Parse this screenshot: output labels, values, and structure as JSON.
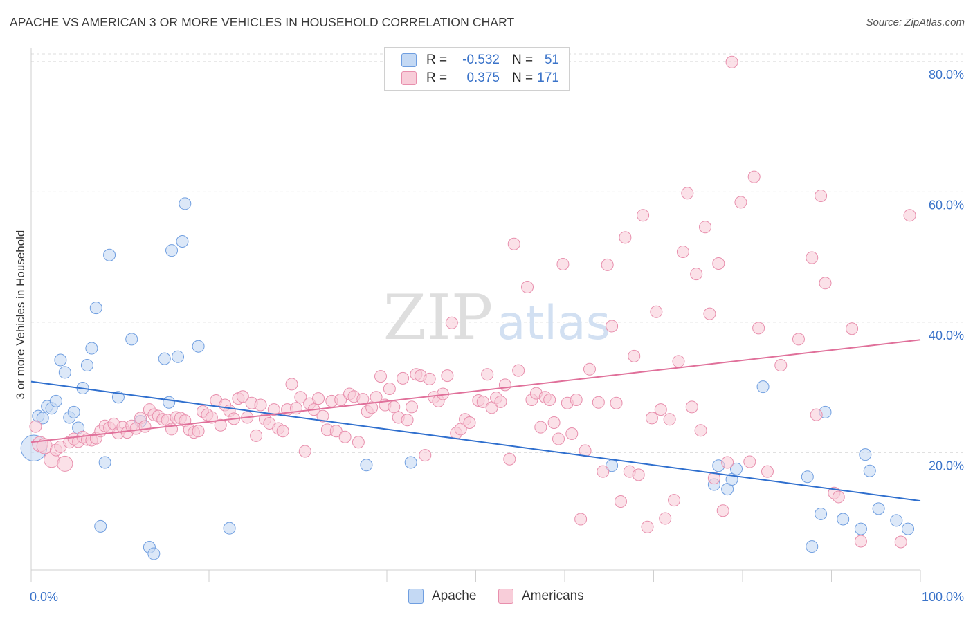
{
  "title": "APACHE VS AMERICAN 3 OR MORE VEHICLES IN HOUSEHOLD CORRELATION CHART",
  "source": "Source: ZipAtlas.com",
  "watermark": {
    "zip": "ZIP",
    "atlas": "atlas"
  },
  "legend": {
    "rows": [
      {
        "r_label": "R =",
        "r_value": "-0.532",
        "n_label": "N =",
        "n_value": "51",
        "color": "#6f9ee0",
        "fill": "#c4d9f4"
      },
      {
        "r_label": "R =",
        "r_value": "0.375",
        "n_label": "N =",
        "n_value": "171",
        "color": "#e88fad",
        "fill": "#f8cdd9"
      }
    ]
  },
  "bottom_legend": {
    "apache": "Apache",
    "americans": "Americans"
  },
  "chart_data": {
    "type": "scatter",
    "ylabel": "3 or more Vehicles in Household",
    "xlim": [
      0,
      100
    ],
    "ylim": [
      2,
      82
    ],
    "x_tick_labels": [
      "0.0%",
      "100.0%"
    ],
    "y_ticks": [
      {
        "value": 20,
        "label": "20.0%"
      },
      {
        "value": 40,
        "label": "40.0%"
      },
      {
        "value": 60,
        "label": "60.0%"
      },
      {
        "value": 80,
        "label": "80.0%"
      }
    ],
    "grid": true,
    "series": [
      {
        "name": "Apache",
        "color": "#6f9ee0",
        "fill": "#c4d9f4",
        "trend": {
          "x": [
            0,
            100
          ],
          "y": [
            30.9,
            12.6
          ]
        },
        "points": [
          [
            0.3,
            20.7,
            2.2
          ],
          [
            0.8,
            25.6,
            1
          ],
          [
            1.3,
            25.3,
            1
          ],
          [
            1.8,
            27.1,
            1
          ],
          [
            2.3,
            26.8,
            1
          ],
          [
            2.8,
            27.9,
            1
          ],
          [
            3.3,
            34.2,
            1
          ],
          [
            3.8,
            32.3,
            1
          ],
          [
            4.3,
            25.4,
            1
          ],
          [
            4.8,
            26.2,
            1
          ],
          [
            5.3,
            23.8,
            1
          ],
          [
            5.8,
            29.9,
            1
          ],
          [
            6.3,
            33.4,
            1
          ],
          [
            6.8,
            36.0,
            1
          ],
          [
            7.3,
            42.2,
            1
          ],
          [
            7.8,
            8.7,
            1
          ],
          [
            8.3,
            18.5,
            1
          ],
          [
            8.8,
            50.3,
            1
          ],
          [
            9.8,
            28.5,
            1
          ],
          [
            11.3,
            37.4,
            1
          ],
          [
            12.3,
            24.8,
            1
          ],
          [
            13.3,
            5.5,
            1
          ],
          [
            13.8,
            4.5,
            1
          ],
          [
            15.0,
            34.4,
            1
          ],
          [
            15.5,
            27.7,
            1
          ],
          [
            15.8,
            51.0,
            1
          ],
          [
            16.5,
            34.7,
            1
          ],
          [
            17.0,
            52.4,
            1
          ],
          [
            17.3,
            58.2,
            1
          ],
          [
            18.8,
            36.3,
            1
          ],
          [
            22.3,
            8.4,
            1
          ],
          [
            37.7,
            18.1,
            1
          ],
          [
            42.7,
            18.5,
            1
          ],
          [
            65.3,
            18.0,
            1
          ],
          [
            76.8,
            15.1,
            1
          ],
          [
            77.3,
            18.0,
            1
          ],
          [
            78.3,
            14.4,
            1
          ],
          [
            78.8,
            15.9,
            1
          ],
          [
            79.3,
            17.5,
            1
          ],
          [
            82.3,
            30.1,
            1
          ],
          [
            87.3,
            16.3,
            1
          ],
          [
            87.8,
            5.6,
            1
          ],
          [
            88.8,
            10.6,
            1
          ],
          [
            89.3,
            26.2,
            1
          ],
          [
            91.3,
            9.8,
            1
          ],
          [
            93.3,
            8.3,
            1
          ],
          [
            93.8,
            19.7,
            1
          ],
          [
            94.3,
            17.2,
            1
          ],
          [
            95.3,
            11.4,
            1
          ],
          [
            97.3,
            9.6,
            1
          ],
          [
            98.6,
            8.3,
            1
          ]
        ]
      },
      {
        "name": "Americans",
        "color": "#e88fad",
        "fill": "#f8cdd9",
        "trend": {
          "x": [
            0,
            100
          ],
          "y": [
            21.6,
            37.3
          ]
        },
        "points": [
          [
            0.5,
            24.0,
            1
          ],
          [
            1.0,
            21.3,
            1.3
          ],
          [
            1.5,
            21.0,
            1.3
          ],
          [
            2.3,
            18.9,
            1.3
          ],
          [
            2.8,
            20.4,
            1
          ],
          [
            3.3,
            20.9,
            1
          ],
          [
            3.8,
            18.3,
            1.3
          ],
          [
            4.3,
            21.6,
            1
          ],
          [
            4.8,
            22.1,
            1
          ],
          [
            5.3,
            21.7,
            1
          ],
          [
            5.8,
            22.4,
            1
          ],
          [
            6.3,
            22.0,
            1
          ],
          [
            6.8,
            21.9,
            1
          ],
          [
            7.3,
            22.2,
            1
          ],
          [
            7.8,
            23.3,
            1
          ],
          [
            8.3,
            24.1,
            1
          ],
          [
            8.8,
            23.8,
            1
          ],
          [
            9.3,
            24.4,
            1
          ],
          [
            9.8,
            23.0,
            1
          ],
          [
            10.3,
            23.9,
            1
          ],
          [
            10.8,
            23.1,
            1
          ],
          [
            11.3,
            24.1,
            1
          ],
          [
            11.8,
            23.7,
            1
          ],
          [
            12.3,
            25.3,
            1
          ],
          [
            12.8,
            24.0,
            1
          ],
          [
            13.3,
            26.6,
            1
          ],
          [
            13.8,
            25.8,
            1
          ],
          [
            14.3,
            25.6,
            1
          ],
          [
            14.8,
            25.1,
            1
          ],
          [
            15.3,
            25.0,
            1
          ],
          [
            15.8,
            23.6,
            1
          ],
          [
            16.3,
            25.4,
            1
          ],
          [
            16.8,
            25.3,
            1
          ],
          [
            17.3,
            24.9,
            1
          ],
          [
            17.8,
            23.5,
            1
          ],
          [
            18.3,
            23.1,
            1
          ],
          [
            18.8,
            23.3,
            1
          ],
          [
            19.3,
            26.3,
            1
          ],
          [
            19.8,
            25.8,
            1
          ],
          [
            20.3,
            25.4,
            1
          ],
          [
            20.8,
            28.0,
            1
          ],
          [
            21.3,
            24.2,
            1
          ],
          [
            21.8,
            27.3,
            1
          ],
          [
            22.3,
            26.4,
            1
          ],
          [
            22.8,
            25.2,
            1
          ],
          [
            23.3,
            28.3,
            1
          ],
          [
            23.8,
            28.6,
            1
          ],
          [
            24.3,
            25.4,
            1
          ],
          [
            24.8,
            27.6,
            1
          ],
          [
            25.3,
            22.6,
            1
          ],
          [
            25.8,
            27.3,
            1
          ],
          [
            26.3,
            25.1,
            1
          ],
          [
            26.8,
            24.5,
            1
          ],
          [
            27.3,
            26.6,
            1
          ],
          [
            27.8,
            23.7,
            1
          ],
          [
            28.3,
            23.3,
            1
          ],
          [
            28.8,
            26.6,
            1
          ],
          [
            29.3,
            30.5,
            1
          ],
          [
            29.8,
            26.8,
            1
          ],
          [
            30.3,
            28.5,
            1
          ],
          [
            30.8,
            20.2,
            1
          ],
          [
            31.3,
            27.5,
            1
          ],
          [
            31.8,
            26.6,
            1
          ],
          [
            32.3,
            28.3,
            1
          ],
          [
            32.8,
            25.6,
            1
          ],
          [
            33.3,
            23.5,
            1
          ],
          [
            33.8,
            27.9,
            1
          ],
          [
            34.3,
            23.3,
            1
          ],
          [
            34.8,
            28.1,
            1
          ],
          [
            35.3,
            22.4,
            1
          ],
          [
            35.8,
            29.0,
            1
          ],
          [
            36.3,
            28.6,
            1
          ],
          [
            36.8,
            21.6,
            1
          ],
          [
            37.3,
            28.2,
            1
          ],
          [
            37.8,
            26.3,
            1
          ],
          [
            38.3,
            26.9,
            1
          ],
          [
            38.8,
            28.5,
            1
          ],
          [
            39.3,
            31.7,
            1
          ],
          [
            39.8,
            27.3,
            1
          ],
          [
            40.3,
            29.8,
            1
          ],
          [
            40.8,
            27.0,
            1
          ],
          [
            41.3,
            25.4,
            1
          ],
          [
            41.8,
            31.4,
            1
          ],
          [
            42.3,
            25.0,
            1
          ],
          [
            42.8,
            27.0,
            1
          ],
          [
            43.3,
            32.0,
            1
          ],
          [
            43.8,
            31.8,
            1
          ],
          [
            44.3,
            19.6,
            1
          ],
          [
            44.8,
            31.3,
            1
          ],
          [
            45.3,
            28.5,
            1
          ],
          [
            45.8,
            27.9,
            1
          ],
          [
            46.3,
            29.0,
            1
          ],
          [
            46.8,
            31.8,
            1
          ],
          [
            47.3,
            39.9,
            1
          ],
          [
            47.8,
            23.0,
            1
          ],
          [
            48.3,
            23.6,
            1
          ],
          [
            48.8,
            25.1,
            1
          ],
          [
            49.3,
            24.6,
            1
          ],
          [
            50.3,
            28.0,
            1
          ],
          [
            50.8,
            27.8,
            1
          ],
          [
            51.3,
            32.0,
            1
          ],
          [
            51.8,
            26.9,
            1
          ],
          [
            52.3,
            28.4,
            1
          ],
          [
            52.8,
            27.8,
            1
          ],
          [
            53.3,
            30.4,
            1
          ],
          [
            53.8,
            19.0,
            1
          ],
          [
            54.3,
            52.0,
            1
          ],
          [
            54.8,
            32.6,
            1
          ],
          [
            55.8,
            45.4,
            1
          ],
          [
            56.3,
            28.1,
            1
          ],
          [
            56.8,
            29.1,
            1
          ],
          [
            57.3,
            23.9,
            1
          ],
          [
            57.8,
            28.5,
            1
          ],
          [
            58.3,
            28.1,
            1
          ],
          [
            58.8,
            24.6,
            1
          ],
          [
            59.3,
            22.1,
            1
          ],
          [
            59.8,
            48.9,
            1
          ],
          [
            60.3,
            27.6,
            1
          ],
          [
            60.8,
            22.9,
            1
          ],
          [
            61.3,
            28.1,
            1
          ],
          [
            61.8,
            9.8,
            1
          ],
          [
            62.3,
            20.3,
            1
          ],
          [
            62.8,
            32.8,
            1
          ],
          [
            63.8,
            27.7,
            1
          ],
          [
            64.3,
            17.1,
            1
          ],
          [
            64.8,
            48.8,
            1
          ],
          [
            65.3,
            39.4,
            1
          ],
          [
            65.8,
            27.6,
            1
          ],
          [
            66.3,
            12.5,
            1
          ],
          [
            66.8,
            53.0,
            1
          ],
          [
            67.3,
            17.1,
            1
          ],
          [
            67.8,
            34.8,
            1
          ],
          [
            68.3,
            16.6,
            1
          ],
          [
            68.8,
            56.4,
            1
          ],
          [
            69.3,
            8.6,
            1
          ],
          [
            69.8,
            25.3,
            1
          ],
          [
            70.3,
            41.6,
            1
          ],
          [
            70.8,
            26.6,
            1
          ],
          [
            71.3,
            9.9,
            1
          ],
          [
            71.8,
            25.1,
            1
          ],
          [
            72.3,
            12.7,
            1
          ],
          [
            72.8,
            34.0,
            1
          ],
          [
            73.3,
            50.8,
            1
          ],
          [
            73.8,
            59.8,
            1
          ],
          [
            74.3,
            27.0,
            1
          ],
          [
            74.8,
            47.4,
            1
          ],
          [
            75.3,
            23.4,
            1
          ],
          [
            75.8,
            54.6,
            1
          ],
          [
            76.3,
            41.3,
            1
          ],
          [
            76.8,
            16.1,
            1
          ],
          [
            77.3,
            49.0,
            1
          ],
          [
            77.8,
            11.1,
            1
          ],
          [
            78.3,
            18.5,
            1
          ],
          [
            78.8,
            79.9,
            1
          ],
          [
            79.8,
            58.4,
            1
          ],
          [
            80.8,
            18.6,
            1
          ],
          [
            81.3,
            62.3,
            1
          ],
          [
            81.8,
            39.1,
            1
          ],
          [
            82.8,
            17.1,
            1
          ],
          [
            84.3,
            33.4,
            1
          ],
          [
            86.3,
            37.4,
            1
          ],
          [
            87.8,
            49.9,
            1
          ],
          [
            88.3,
            25.8,
            1
          ],
          [
            88.8,
            59.4,
            1
          ],
          [
            89.3,
            46.0,
            1
          ],
          [
            90.3,
            13.8,
            1
          ],
          [
            90.8,
            13.2,
            1
          ],
          [
            92.3,
            39.0,
            1
          ],
          [
            93.3,
            6.4,
            1
          ],
          [
            97.8,
            6.3,
            1
          ],
          [
            98.8,
            56.4,
            1
          ]
        ]
      }
    ]
  }
}
